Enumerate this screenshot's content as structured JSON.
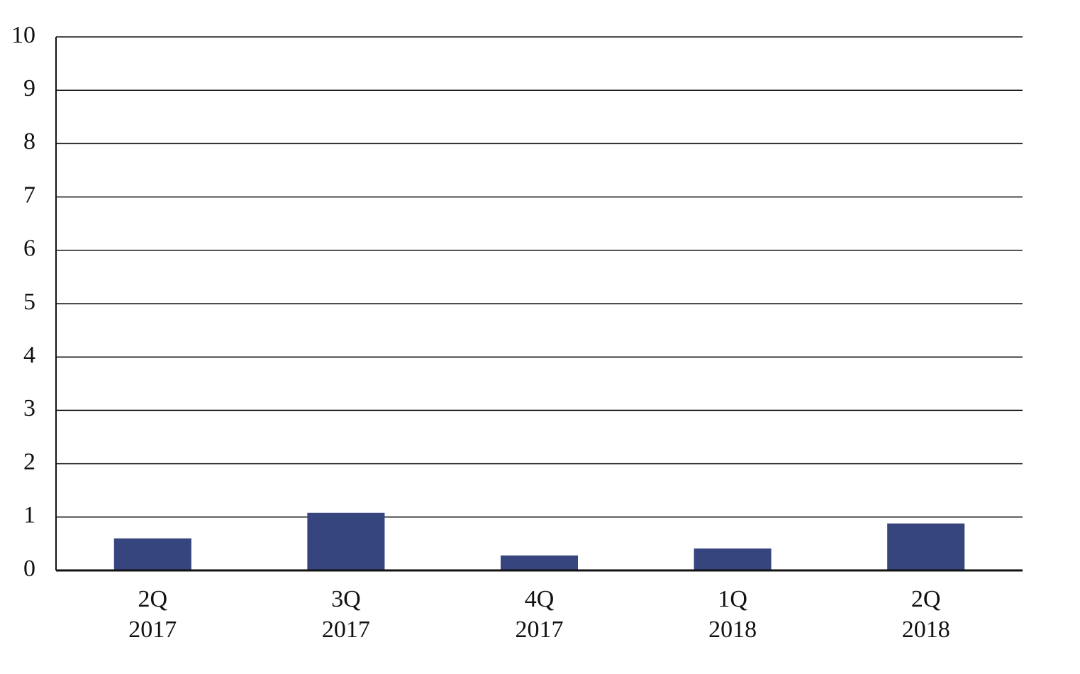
{
  "chart_data": {
    "type": "bar",
    "categories": [
      "2Q 2017",
      "3Q 2017",
      "4Q 2017",
      "1Q 2018",
      "2Q 2018"
    ],
    "values": [
      0.6,
      1.08,
      0.28,
      0.41,
      0.88
    ],
    "color": "#37457f",
    "ylim": [
      0,
      10
    ],
    "yticks": [
      0,
      1,
      2,
      3,
      4,
      5,
      6,
      7,
      8,
      9,
      10
    ],
    "grid": true
  }
}
